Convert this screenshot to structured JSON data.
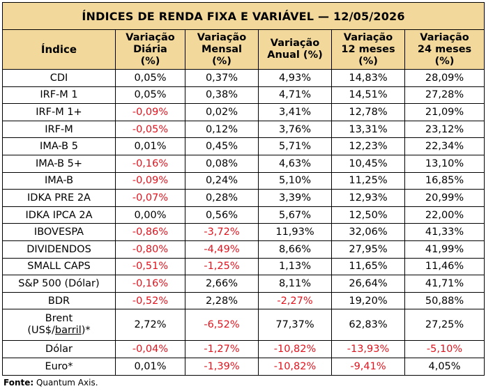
{
  "title": "ÍNDICES DE RENDA FIXA E VARIÁVEL — 12/05/2026",
  "headers": [
    [
      "Índice"
    ],
    [
      "Variação",
      "Diária",
      "(%)"
    ],
    [
      "Variação",
      "Mensal",
      "(%)"
    ],
    [
      "Variação",
      "Anual (%)"
    ],
    [
      "Variação",
      "12 meses",
      "(%)"
    ],
    [
      "Variação",
      "24 meses",
      "(%)"
    ]
  ],
  "rows": [
    {
      "name": "CDI",
      "values": [
        "0,05%",
        "0,37%",
        "4,93%",
        "14,83%",
        "28,09%"
      ]
    },
    {
      "name": "IRF-M 1",
      "values": [
        "0,05%",
        "0,38%",
        "4,71%",
        "14,51%",
        "27,28%"
      ]
    },
    {
      "name": "IRF-M 1+",
      "values": [
        "-0,09%",
        "0,02%",
        "3,41%",
        "12,78%",
        "21,09%"
      ]
    },
    {
      "name": "IRF-M",
      "values": [
        "-0,05%",
        "0,12%",
        "3,76%",
        "13,31%",
        "23,12%"
      ]
    },
    {
      "name": "IMA-B 5",
      "values": [
        "0,01%",
        "0,45%",
        "5,71%",
        "12,23%",
        "22,34%"
      ]
    },
    {
      "name": "IMA-B 5+",
      "values": [
        "-0,16%",
        "0,08%",
        "4,63%",
        "10,45%",
        "13,10%"
      ]
    },
    {
      "name": "IMA-B",
      "values": [
        "-0,09%",
        "0,24%",
        "5,10%",
        "11,25%",
        "16,85%"
      ]
    },
    {
      "name": "IDKA PRE 2A",
      "values": [
        "-0,07%",
        "0,28%",
        "3,39%",
        "12,93%",
        "20,99%"
      ]
    },
    {
      "name": "IDKA IPCA 2A",
      "values": [
        "0,00%",
        "0,56%",
        "5,67%",
        "12,50%",
        "22,00%"
      ]
    },
    {
      "name": "IBOVESPA",
      "values": [
        "-0,86%",
        "-3,72%",
        "11,93%",
        "32,06%",
        "41,33%"
      ]
    },
    {
      "name": "DIVIDENDOS",
      "values": [
        "-0,80%",
        "-4,49%",
        "8,66%",
        "27,95%",
        "41,99%"
      ]
    },
    {
      "name": "SMALL CAPS",
      "values": [
        "-0,51%",
        "-1,25%",
        "1,13%",
        "11,65%",
        "11,46%"
      ]
    },
    {
      "name": "S&P 500 (Dólar)",
      "values": [
        "-0,16%",
        "2,66%",
        "8,11%",
        "26,64%",
        "41,71%"
      ]
    },
    {
      "name": "BDR",
      "values": [
        "-0,52%",
        "2,28%",
        "-2,27%",
        "19,20%",
        "50,88%"
      ]
    },
    {
      "name_line1": "Brent",
      "name_line2a": "(US$/",
      "name_line2b": "barril",
      "name_line2c": ")*",
      "values": [
        "2,72%",
        "-6,52%",
        "77,37%",
        "62,83%",
        "27,25%"
      ]
    },
    {
      "name": "Dólar",
      "values": [
        "-0,04%",
        "-1,27%",
        "-10,82%",
        "-13,93%",
        "-5,10%"
      ]
    },
    {
      "name": "Euro*",
      "values": [
        "0,01%",
        "-1,39%",
        "-10,82%",
        "-9,41%",
        "4,05%"
      ]
    }
  ],
  "footer": {
    "label": "Fonte:",
    "text": " Quantum Axis."
  },
  "colors": {
    "header_bg": "#f2d99b",
    "negative": "#e0141e",
    "border": "#000000"
  }
}
